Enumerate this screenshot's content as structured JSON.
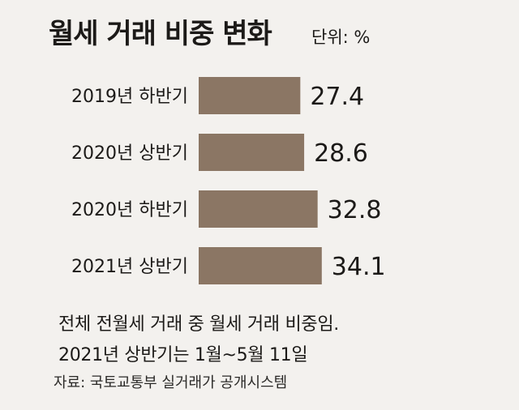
{
  "title": "월세 거래 비중 변화",
  "unit_label": "단위: %",
  "notes": [
    "전체 전월세 거래 중 월세 거래 비중임.",
    "2021년 상반기는 1월~5월 11일"
  ],
  "source": "자료: 국토교통부 실거래가 공개시스템",
  "colors": {
    "bar": "#8b7664",
    "background": "#f3f1ee"
  },
  "chart_data": {
    "type": "bar",
    "orientation": "horizontal",
    "title": "월세 거래 비중 변화",
    "unit": "%",
    "categories": [
      "2019년 하반기",
      "2020년 상반기",
      "2020년 하반기",
      "2021년 상반기"
    ],
    "values": [
      27.4,
      28.6,
      32.8,
      34.1
    ],
    "data_labels": [
      "27.4",
      "28.6",
      "32.8",
      "34.1"
    ],
    "legend": "none",
    "grid": false
  }
}
